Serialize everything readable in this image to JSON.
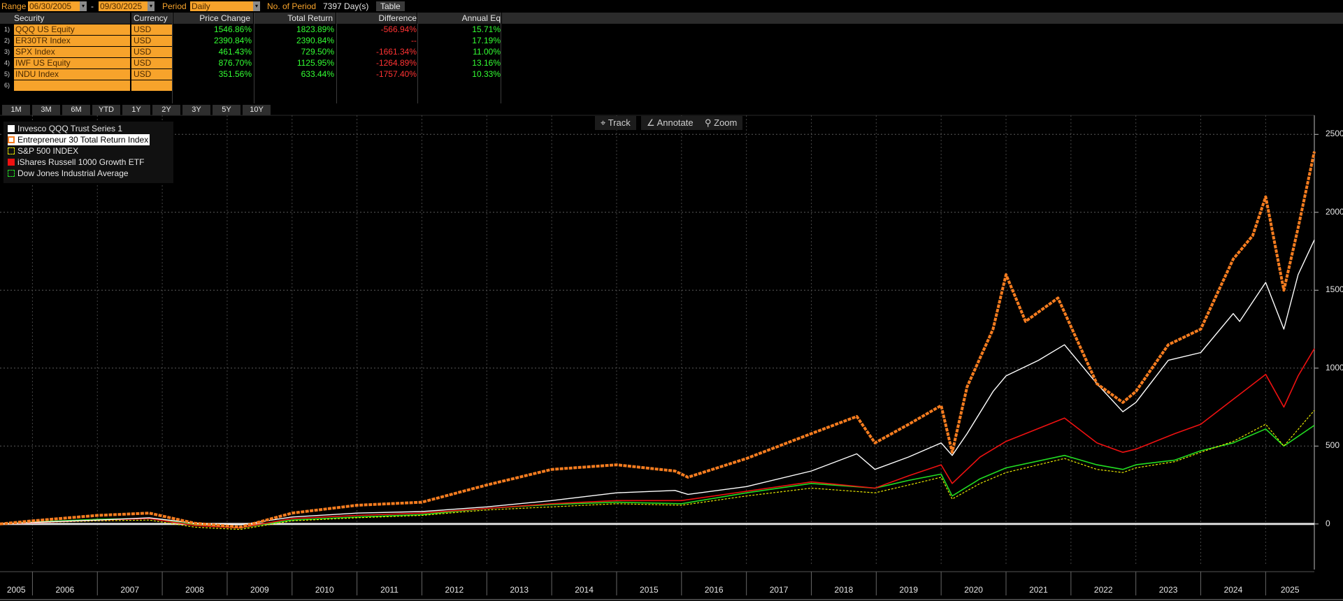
{
  "toolbar": {
    "range_label": "Range",
    "start_date": "06/30/2005",
    "range_sep": "-",
    "end_date": "09/30/2025",
    "period_label": "Period",
    "period_value": "Daily",
    "num_period_label": "No. of Period",
    "num_period_value": "7397 Day(s)",
    "table_button": "Table"
  },
  "table": {
    "headers": [
      "Security",
      "Currency",
      "Price Change",
      "Total Return",
      "Difference",
      "Annual Eq"
    ],
    "rows": [
      {
        "num": "1)",
        "security": "QQQ US Equity",
        "currency": "USD",
        "price_change": "1546.86%",
        "total_return": "1823.89%",
        "difference": "-566.94%",
        "annual_eq": "15.71%"
      },
      {
        "num": "2)",
        "security": "ER30TR Index",
        "currency": "USD",
        "price_change": "2390.84%",
        "total_return": "2390.84%",
        "difference": "--",
        "annual_eq": "17.19%"
      },
      {
        "num": "3)",
        "security": "SPX Index",
        "currency": "USD",
        "price_change": "461.43%",
        "total_return": "729.50%",
        "difference": "-1661.34%",
        "annual_eq": "11.00%"
      },
      {
        "num": "4)",
        "security": "IWF US Equity",
        "currency": "USD",
        "price_change": "876.70%",
        "total_return": "1125.95%",
        "difference": "-1264.89%",
        "annual_eq": "13.16%"
      },
      {
        "num": "5)",
        "security": "INDU Index",
        "currency": "USD",
        "price_change": "351.56%",
        "total_return": "633.44%",
        "difference": "-1757.40%",
        "annual_eq": "10.33%"
      },
      {
        "num": "6)",
        "security": "",
        "currency": "",
        "price_change": "",
        "total_return": "",
        "difference": "",
        "annual_eq": ""
      }
    ]
  },
  "period_buttons": [
    "1M",
    "3M",
    "6M",
    "YTD",
    "1Y",
    "2Y",
    "3Y",
    "5Y",
    "10Y"
  ],
  "chart_tools": {
    "track": "Track",
    "annotate": "Annotate",
    "zoom": "Zoom"
  },
  "colors": {
    "orange": "#f7a32b",
    "green_text": "#33ff33",
    "red_text": "#ff3333",
    "qqq": "#ffffff",
    "er30": "#f57c1f",
    "spx": "#e8e800",
    "iwf": "#ee1111",
    "indu": "#22dd22"
  },
  "chart_data": {
    "type": "line",
    "title": "",
    "xlabel": "",
    "ylabel": "",
    "xlim": [
      2005.5,
      2025.75
    ],
    "ylim": [
      -270,
      2600
    ],
    "yticks": [
      0,
      500,
      1000,
      1500,
      2000,
      2500
    ],
    "xticks": [
      "2005",
      "2006",
      "2007",
      "2008",
      "2009",
      "2010",
      "2011",
      "2012",
      "2013",
      "2014",
      "2015",
      "2016",
      "2017",
      "2018",
      "2019",
      "2020",
      "2021",
      "2022",
      "2023",
      "2024",
      "2025"
    ],
    "grid": true,
    "legend_position": "top-left",
    "series": [
      {
        "name": "Invesco QQQ Trust Series 1",
        "color": "#ffffff",
        "x": [
          2005.5,
          2006.0,
          2007.0,
          2007.8,
          2008.5,
          2009.2,
          2010.0,
          2011.0,
          2012.0,
          2013.0,
          2014.0,
          2015.0,
          2015.9,
          2016.1,
          2017.0,
          2018.0,
          2018.7,
          2018.98,
          2019.5,
          2020.0,
          2020.17,
          2020.4,
          2020.8,
          2021.0,
          2021.5,
          2021.9,
          2022.4,
          2022.8,
          2023.0,
          2023.5,
          2024.0,
          2024.5,
          2024.6,
          2025.0,
          2025.28,
          2025.5,
          2025.75
        ],
        "y": [
          0,
          10,
          25,
          40,
          5,
          -5,
          45,
          70,
          80,
          110,
          150,
          200,
          215,
          190,
          240,
          340,
          450,
          350,
          430,
          520,
          440,
          580,
          850,
          950,
          1050,
          1150,
          900,
          720,
          780,
          1050,
          1100,
          1350,
          1300,
          1550,
          1250,
          1600,
          1823
        ]
      },
      {
        "name": "Entrepreneur 30 Total Return Index",
        "color": "#f57c1f",
        "x": [
          2005.5,
          2006.0,
          2007.0,
          2007.8,
          2008.5,
          2009.2,
          2010.0,
          2011.0,
          2012.0,
          2013.0,
          2014.0,
          2015.0,
          2015.9,
          2016.1,
          2017.0,
          2018.0,
          2018.7,
          2018.98,
          2019.5,
          2020.0,
          2020.17,
          2020.4,
          2020.8,
          2021.0,
          2021.3,
          2021.8,
          2022.4,
          2022.8,
          2023.0,
          2023.5,
          2024.0,
          2024.5,
          2024.8,
          2025.0,
          2025.28,
          2025.5,
          2025.75
        ],
        "y": [
          0,
          20,
          55,
          70,
          5,
          -20,
          70,
          120,
          140,
          250,
          350,
          380,
          340,
          300,
          420,
          580,
          690,
          520,
          640,
          760,
          460,
          880,
          1250,
          1600,
          1300,
          1450,
          900,
          780,
          850,
          1150,
          1250,
          1700,
          1850,
          2100,
          1500,
          1900,
          2390
        ]
      },
      {
        "name": "S&P 500 INDEX",
        "color": "#e8e800",
        "x": [
          2005.5,
          2006.0,
          2007.0,
          2007.8,
          2008.5,
          2009.2,
          2010.0,
          2011.0,
          2012.0,
          2013.0,
          2014.0,
          2015.0,
          2016.0,
          2017.0,
          2018.0,
          2018.98,
          2019.5,
          2020.0,
          2020.17,
          2020.6,
          2021.0,
          2021.9,
          2022.4,
          2022.8,
          2023.0,
          2023.6,
          2024.0,
          2024.5,
          2025.0,
          2025.28,
          2025.75
        ],
        "y": [
          0,
          8,
          20,
          25,
          -20,
          -35,
          20,
          40,
          55,
          90,
          110,
          130,
          120,
          180,
          230,
          200,
          250,
          300,
          160,
          260,
          330,
          420,
          350,
          330,
          360,
          400,
          460,
          530,
          640,
          500,
          729
        ]
      },
      {
        "name": "iShares Russell 1000 Growth ETF",
        "color": "#ee1111",
        "x": [
          2005.5,
          2006.0,
          2007.0,
          2007.8,
          2008.5,
          2009.2,
          2010.0,
          2011.0,
          2012.0,
          2013.0,
          2014.0,
          2015.0,
          2016.0,
          2017.0,
          2018.0,
          2018.98,
          2019.5,
          2020.0,
          2020.17,
          2020.6,
          2021.0,
          2021.9,
          2022.4,
          2022.8,
          2023.0,
          2023.6,
          2024.0,
          2024.5,
          2025.0,
          2025.28,
          2025.5,
          2025.75
        ],
        "y": [
          0,
          8,
          25,
          35,
          -10,
          -25,
          35,
          55,
          70,
          100,
          130,
          150,
          150,
          210,
          270,
          230,
          310,
          380,
          260,
          430,
          530,
          680,
          520,
          460,
          480,
          580,
          640,
          800,
          960,
          750,
          950,
          1125
        ]
      },
      {
        "name": "Dow Jones Industrial Average",
        "color": "#22dd22",
        "x": [
          2005.5,
          2006.0,
          2007.0,
          2007.8,
          2008.5,
          2009.2,
          2010.0,
          2011.0,
          2012.0,
          2013.0,
          2014.0,
          2015.0,
          2016.0,
          2017.0,
          2018.0,
          2018.98,
          2019.5,
          2020.0,
          2020.17,
          2020.6,
          2021.0,
          2021.9,
          2022.4,
          2022.8,
          2023.0,
          2023.6,
          2024.0,
          2024.5,
          2025.0,
          2025.28,
          2025.75
        ],
        "y": [
          0,
          12,
          30,
          35,
          -5,
          -25,
          25,
          45,
          60,
          100,
          125,
          140,
          130,
          200,
          260,
          230,
          280,
          320,
          180,
          290,
          360,
          440,
          380,
          350,
          380,
          410,
          470,
          520,
          610,
          500,
          633
        ]
      }
    ]
  }
}
